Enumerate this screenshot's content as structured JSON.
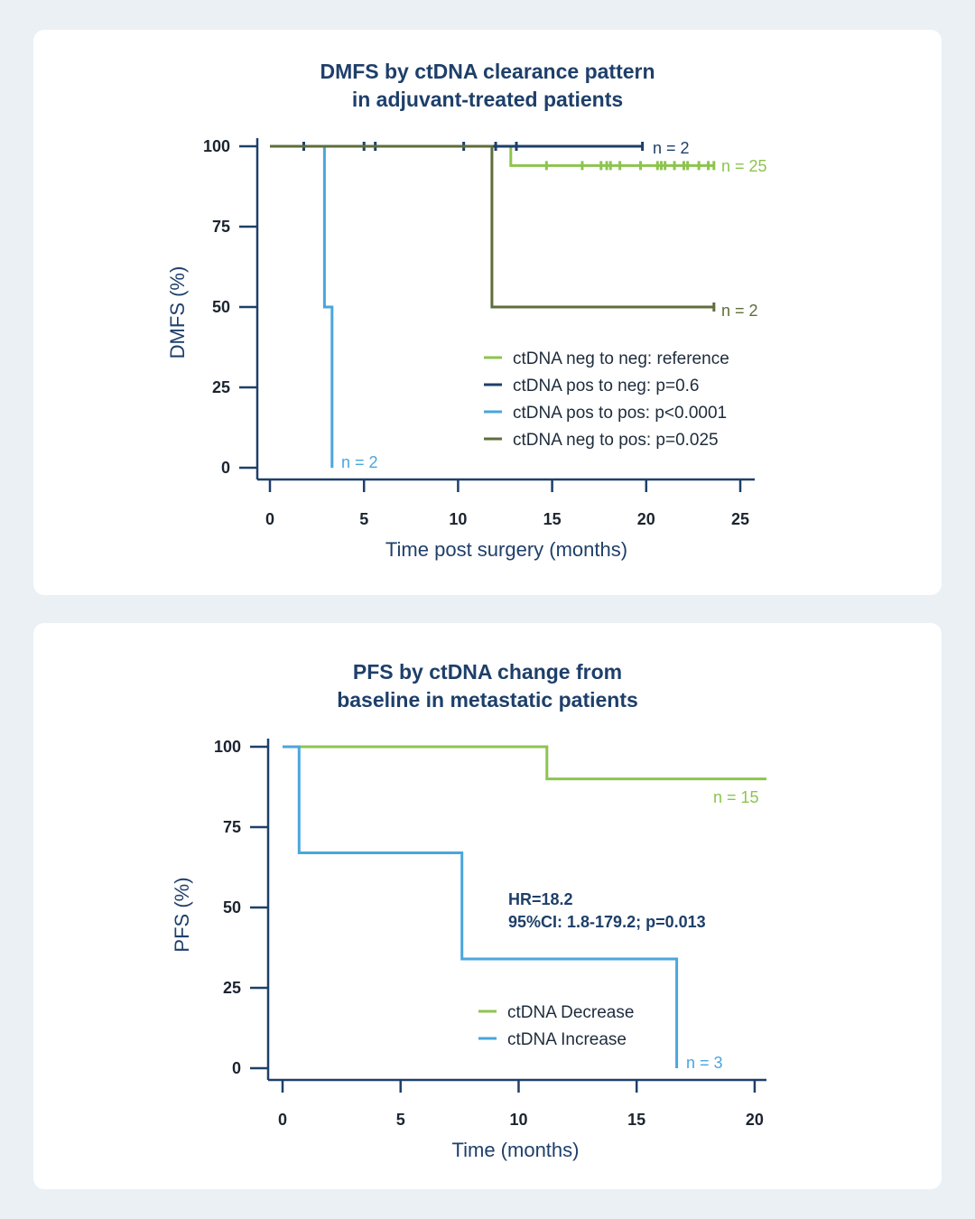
{
  "colors": {
    "navy": "#1e3f6a",
    "light_green": "#8dc44e",
    "light_blue": "#4aa6dc",
    "olive": "#5e6e3b",
    "background": "#eaf0f4",
    "card": "#ffffff"
  },
  "chart_data": [
    {
      "type": "line",
      "subtype": "kaplan-meier",
      "title_lines": [
        "DMFS by ctDNA clearance pattern",
        "in adjuvant-treated patients"
      ],
      "xlabel": "Time post surgery (months)",
      "ylabel": "DMFS (%)",
      "xlim": [
        0,
        25
      ],
      "ylim": [
        0,
        100
      ],
      "xticks": [
        0,
        5,
        10,
        15,
        20,
        25
      ],
      "yticks": [
        0,
        25,
        50,
        75,
        100
      ],
      "legend_position": "center-right",
      "series": [
        {
          "name": "ctDNA neg to neg: reference",
          "color": "#8dc44e",
          "steps": [
            [
              0,
              100
            ],
            [
              12.8,
              100
            ],
            [
              12.8,
              94
            ],
            [
              23.6,
              94
            ]
          ],
          "censor_times": [
            14.7,
            16.6,
            17.6,
            17.9,
            18.1,
            18.6,
            19.7,
            20.6,
            20.8,
            21.0,
            21.5,
            22.0,
            22.2,
            22.8,
            23.3,
            23.6
          ],
          "end_label": "n = 25"
        },
        {
          "name": "ctDNA pos to neg: p=0.6",
          "color": "#1e3f6a",
          "steps": [
            [
              0,
              100
            ],
            [
              19.8,
              100
            ]
          ],
          "censor_times": [
            1.8,
            5.0,
            5.6,
            10.3,
            12.0,
            13.1,
            19.8
          ],
          "end_label": "n = 2"
        },
        {
          "name": "ctDNA pos to pos: p<0.0001",
          "color": "#4aa6dc",
          "steps": [
            [
              0,
              100
            ],
            [
              2.9,
              100
            ],
            [
              2.9,
              50
            ],
            [
              3.3,
              50
            ],
            [
              3.3,
              0
            ]
          ],
          "censor_times": [],
          "end_label": "n = 2"
        },
        {
          "name": "ctDNA neg to pos: p=0.025",
          "color": "#5e6e3b",
          "steps": [
            [
              0,
              100
            ],
            [
              11.8,
              100
            ],
            [
              11.8,
              50
            ],
            [
              23.6,
              50
            ]
          ],
          "censor_times": [
            23.6
          ],
          "end_label": "n = 2"
        }
      ]
    },
    {
      "type": "line",
      "subtype": "kaplan-meier",
      "title_lines": [
        "PFS by ctDNA change from",
        "baseline in metastatic patients"
      ],
      "xlabel": "Time (months)",
      "ylabel": "PFS (%)",
      "xlim": [
        0,
        20.5
      ],
      "ylim": [
        0,
        100
      ],
      "xticks": [
        0,
        5,
        10,
        15,
        20
      ],
      "yticks": [
        0,
        25,
        50,
        75,
        100
      ],
      "legend_position": "bottom-center",
      "annotation_lines": [
        "HR=18.2",
        "95%CI: 1.8-179.2; p=0.013"
      ],
      "series": [
        {
          "name": "ctDNA Decrease",
          "color": "#8dc44e",
          "steps": [
            [
              0,
              100
            ],
            [
              11.2,
              100
            ],
            [
              11.2,
              90
            ],
            [
              20.5,
              90
            ]
          ],
          "censor_times": [],
          "end_label": "n = 15"
        },
        {
          "name": "ctDNA Increase",
          "color": "#4aa6dc",
          "steps": [
            [
              0,
              100
            ],
            [
              0.7,
              100
            ],
            [
              0.7,
              67
            ],
            [
              7.6,
              67
            ],
            [
              7.6,
              34
            ],
            [
              16.7,
              34
            ],
            [
              16.7,
              0
            ]
          ],
          "censor_times": [],
          "end_label": "n = 3"
        }
      ]
    }
  ]
}
